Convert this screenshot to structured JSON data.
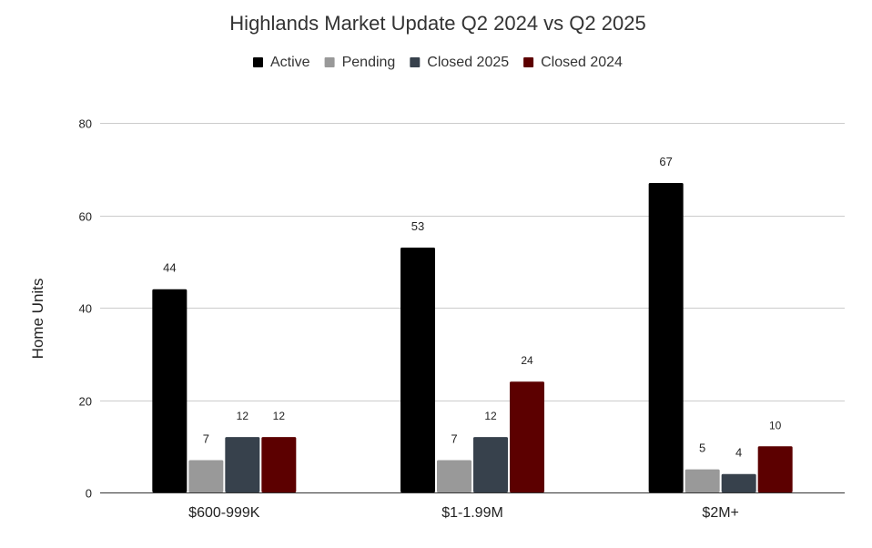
{
  "chart_data": {
    "type": "bar",
    "title": "Highlands Market Update Q2 2024 vs Q2 2025",
    "xlabel": "",
    "ylabel": "Home Units",
    "ylim": [
      0,
      80
    ],
    "yticks": [
      0,
      20,
      40,
      60,
      80
    ],
    "grid": true,
    "legend_position": "top",
    "categories": [
      "$600-999K",
      "$1-1.99M",
      "$2M+"
    ],
    "series": [
      {
        "name": "Active",
        "color": "#000000",
        "values": [
          44,
          53,
          67
        ],
        "labels": [
          "44",
          "53",
          "67"
        ]
      },
      {
        "name": "Pending",
        "color": "#999999",
        "values": [
          7,
          7,
          5
        ],
        "labels": [
          "7",
          "7",
          "5"
        ]
      },
      {
        "name": "Closed 2025",
        "color": "#37414c",
        "values": [
          12,
          12,
          4
        ],
        "labels": [
          "12",
          "12",
          "4"
        ]
      },
      {
        "name": "Closed 2024",
        "color": "#5c0000",
        "values": [
          12,
          24,
          10
        ],
        "labels": [
          "12",
          "24",
          "10"
        ]
      }
    ]
  }
}
